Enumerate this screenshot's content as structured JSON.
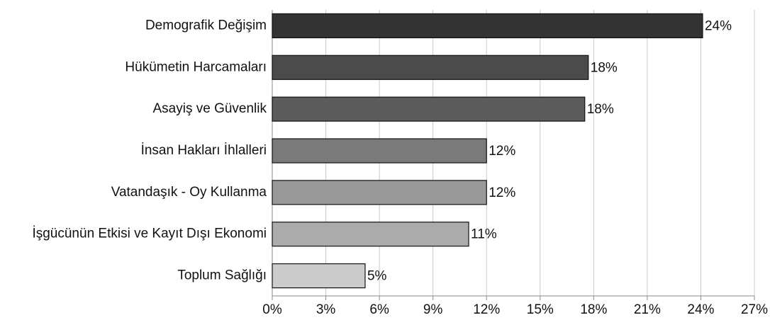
{
  "chart_data": {
    "type": "barh",
    "categories": [
      "Demografik Değişim",
      "Hükümetin Harcamaları",
      "Asayiş ve Güvenlik",
      "İnsan Hakları İhlalleri",
      "Vatandaşık - Oy Kullanma",
      "İşgücünün Etkisi ve Kayıt Dışı Ekonomi",
      "Toplum Sağlığı"
    ],
    "values": [
      24.1,
      17.7,
      17.5,
      12.0,
      12.0,
      11.0,
      5.2
    ],
    "value_labels": [
      "24%",
      "18%",
      "18%",
      "12%",
      "12%",
      "11%",
      "5%"
    ],
    "colors": [
      "#333333",
      "#4b4b4b",
      "#5c5c5c",
      "#7a7a7a",
      "#999999",
      "#ababab",
      "#cccccc"
    ],
    "xlim": [
      0,
      27
    ],
    "xticks": [
      {
        "value": 0,
        "label": "0%"
      },
      {
        "value": 3,
        "label": "3%"
      },
      {
        "value": 6,
        "label": "6%"
      },
      {
        "value": 9,
        "label": "9%"
      },
      {
        "value": 12,
        "label": "12%"
      },
      {
        "value": 15,
        "label": "15%"
      },
      {
        "value": 18,
        "label": "18%"
      },
      {
        "value": 21,
        "label": "21%"
      },
      {
        "value": 24,
        "label": "24%"
      },
      {
        "value": 27,
        "label": "27%"
      }
    ],
    "grid": true
  }
}
